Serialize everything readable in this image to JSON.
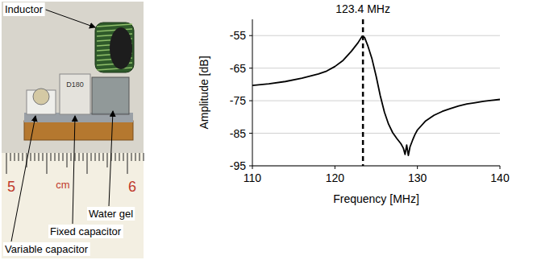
{
  "photo": {
    "labels": {
      "inductor": "Inductor",
      "water_gel": "Water gel",
      "fixed_capacitor": "Fixed capacitor",
      "variable_capacitor": "Variable capacitor"
    },
    "component_marking": "D180",
    "ruler": [
      "5",
      "cm",
      "6"
    ]
  },
  "chart_data": {
    "type": "line",
    "x_label": "Frequency [MHz]",
    "y_label": "Amplitude [dB]",
    "x": [
      110,
      112,
      114,
      116,
      118,
      119,
      120,
      121,
      122,
      122.8,
      123.3,
      123.6,
      124,
      124.5,
      125,
      125.5,
      126,
      126.5,
      127,
      127.5,
      128,
      128.3,
      128.5,
      128.7,
      128.9,
      129.1,
      129.4,
      129.7,
      130,
      131,
      132,
      133,
      134,
      135,
      136,
      137,
      138,
      139,
      140
    ],
    "series": [
      {
        "color": "#000000",
        "line_style": "solid",
        "values": [
          -70.3,
          -69.8,
          -69.1,
          -68.1,
          -66.8,
          -65.9,
          -64.5,
          -62.6,
          -59.8,
          -57.2,
          -55.2,
          -55.6,
          -58.2,
          -62.2,
          -67.5,
          -73.5,
          -78.5,
          -82.2,
          -84.8,
          -86.6,
          -88.2,
          -89.6,
          -91.5,
          -88.6,
          -91.8,
          -89.2,
          -87.2,
          -85.4,
          -84.0,
          -81.2,
          -79.5,
          -78.3,
          -77.4,
          -76.6,
          -76.0,
          -75.6,
          -75.2,
          -74.9,
          -74.6
        ]
      }
    ],
    "xlim": [
      110,
      140
    ],
    "xticks": [
      110,
      120,
      130,
      140
    ],
    "ylim": [
      -95,
      -50
    ],
    "yticks": [
      -95,
      -85,
      -75,
      -65,
      -55
    ],
    "grid": true,
    "annotations": [
      {
        "x": 123.4,
        "label": "123.4 MHz",
        "line_style": "dashed"
      }
    ]
  }
}
